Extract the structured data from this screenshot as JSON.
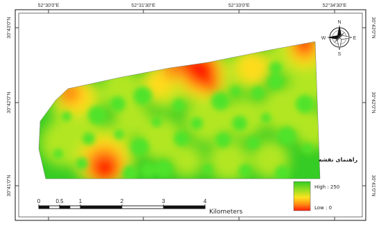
{
  "map": {
    "graticule": {
      "top_longitudes": [
        "52°30'0\"E",
        "52°31'30\"E",
        "52°33'0\"E",
        "52°34'30\"E"
      ],
      "right_latitudes": [
        "30°43'0\"N",
        "30°42'0\"N",
        "30°41'0\"N"
      ],
      "left_latitudes": [
        "30°43'0\"N",
        "30°42'0\"N",
        "30°41'0\"N"
      ]
    },
    "north_arrow": {
      "n": "N",
      "s": "S",
      "e": "E",
      "w": "W"
    },
    "legend": {
      "title": "راهنمای نقشه",
      "high_label": "High : 250",
      "low_label": "Low : 0",
      "ramp_colors": [
        "#33cc22",
        "#9be022",
        "#ffe21f",
        "#ff8c12",
        "#ff1d0a"
      ]
    },
    "scale_bar": {
      "ticks": [
        "0",
        "0.5",
        "1",
        "2",
        "3",
        "4"
      ],
      "tick_km": [
        0,
        0.5,
        1,
        2,
        3,
        4
      ],
      "unit": "Kilometers"
    },
    "raster_colors": {
      "background": "#35cc25",
      "ring": "#b2e622",
      "mid": "#ffdc1e",
      "hot": "#ff8412",
      "peak": "#ff1606",
      "spot": "#4fe32c"
    }
  }
}
